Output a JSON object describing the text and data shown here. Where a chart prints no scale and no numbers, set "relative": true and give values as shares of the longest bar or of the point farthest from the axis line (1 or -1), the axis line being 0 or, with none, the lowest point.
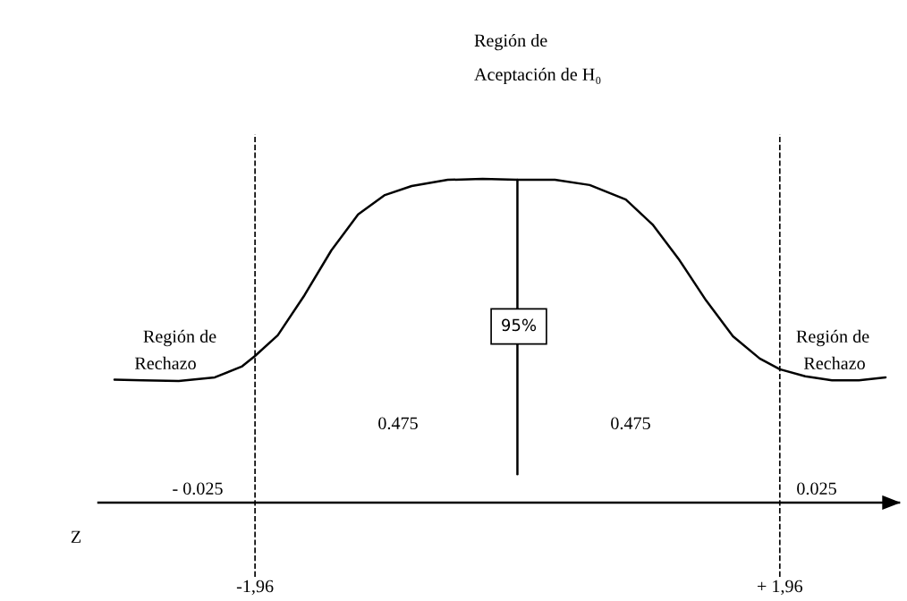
{
  "chart_data": {
    "type": "line",
    "relative": true,
    "title": "Región de\nAceptación de H₀",
    "xlim": [
      -3.13,
      2.85
    ],
    "xticks": [
      {
        "value": -1.96,
        "label": "-1,96"
      },
      {
        "value": 1.96,
        "label": "+ 1,96"
      }
    ],
    "tick_labels": "x",
    "marker": "none",
    "line_style": "solid",
    "series": [
      {
        "color": "#000000",
        "x": [
          -3.01,
          -2.8,
          -2.53,
          -2.26,
          -2.06,
          -1.96,
          -1.79,
          -1.59,
          -1.39,
          -1.19,
          -0.99,
          -0.79,
          -0.52,
          -0.26,
          0.0,
          0.28,
          0.54,
          0.81,
          1.01,
          1.21,
          1.41,
          1.61,
          1.81,
          1.96,
          2.15,
          2.35,
          2.55,
          2.75
        ],
        "values": [
          0.38,
          0.378,
          0.376,
          0.387,
          0.42,
          0.453,
          0.517,
          0.641,
          0.779,
          0.89,
          0.95,
          0.978,
          0.997,
          1.0,
          0.997,
          0.997,
          0.981,
          0.936,
          0.859,
          0.749,
          0.624,
          0.514,
          0.445,
          0.412,
          0.39,
          0.378,
          0.378,
          0.387
        ]
      },
      {
        "color": "#000000",
        "x": [
          0.0,
          0.0
        ],
        "values": [
          0.997,
          0.088
        ]
      }
    ],
    "ref_lines": [
      {
        "axis": "x",
        "value": -1.96,
        "line_style": "dashed",
        "color": "#000000"
      },
      {
        "axis": "x",
        "value": 1.96,
        "line_style": "dashed",
        "color": "#000000"
      }
    ],
    "annotations": [
      "95%",
      "0.475",
      "0.475",
      "Región de",
      "Rechazo",
      "Región de",
      "Rechazo",
      "- 0.025",
      "0.025",
      "Z"
    ]
  }
}
